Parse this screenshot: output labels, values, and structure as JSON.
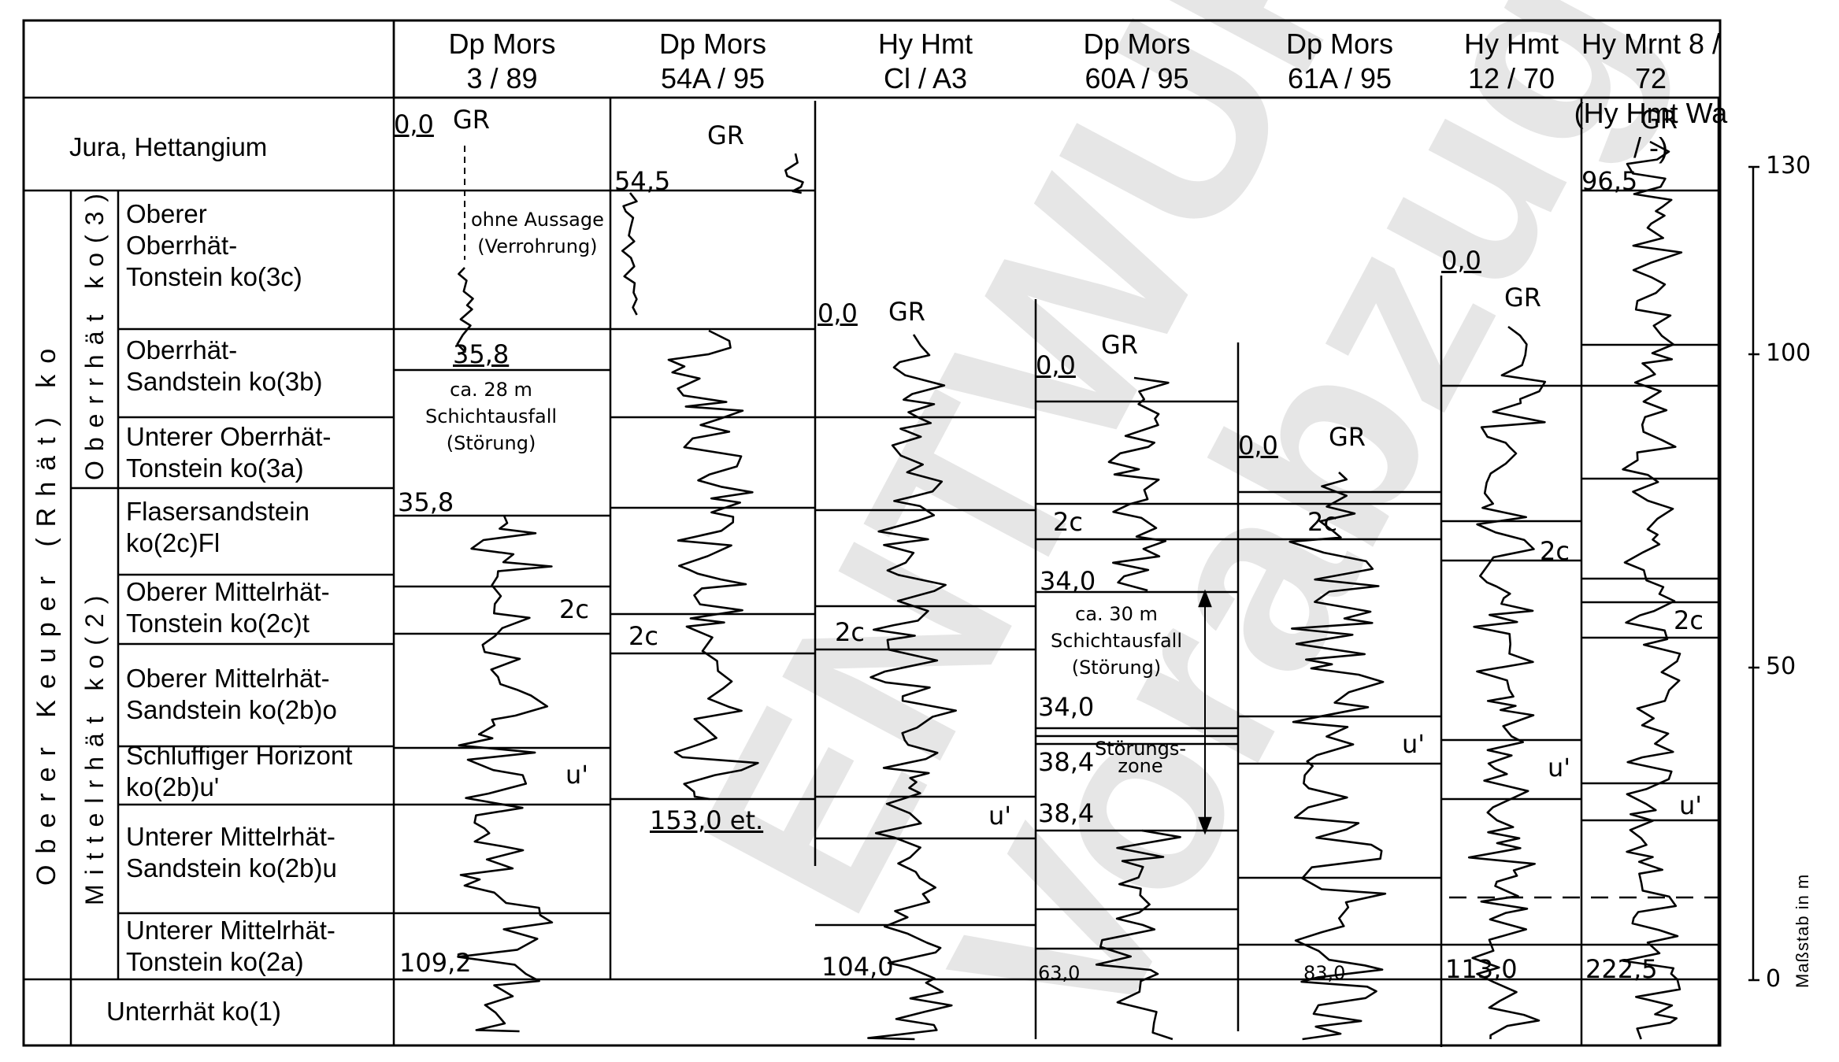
{
  "wells": [
    {
      "id": "w1",
      "line1": "Dp Mors",
      "line2": "3 / 89"
    },
    {
      "id": "w2",
      "line1": "Dp Mors",
      "line2": "54A / 95"
    },
    {
      "id": "w3",
      "line1": "Hy Hmt",
      "line2": "Cl / A3"
    },
    {
      "id": "w4",
      "line1": "Dp Mors",
      "line2": "60A / 95"
    },
    {
      "id": "w5",
      "line1": "Dp Mors",
      "line2": "61A / 95"
    },
    {
      "id": "w6",
      "line1": "Hy Hmt",
      "line2": "12 / 70"
    },
    {
      "id": "w7",
      "line1": "Hy Mrnt 8 / 72",
      "line2": "(Hy Hmt Wa / -)"
    }
  ],
  "stratigraphy": {
    "jura": "Jura,  Hettangium",
    "outer_group": "Oberer  Keuper  (Rhät)  ko",
    "oberrhaet": "Oberrhät  ko(3)",
    "mittelrhaet": "Mittelrhät  ko(2)",
    "units": [
      {
        "l1": "Oberer",
        "l2": "Oberrhät-",
        "l3": "Tonstein  ko(3c)"
      },
      {
        "l1": "Oberrhät-",
        "l2": "Sandstein  ko(3b)",
        "l3": ""
      },
      {
        "l1": "Unterer Oberrhät-",
        "l2": "Tonstein  ko(3a)",
        "l3": ""
      },
      {
        "l1": "Flasersandstein",
        "l2": "ko(2c)Fl",
        "l3": ""
      },
      {
        "l1": "Oberer Mittelrhät-",
        "l2": "Tonstein  ko(2c)t",
        "l3": ""
      },
      {
        "l1": "Oberer Mittelrhät-",
        "l2": "Sandstein  ko(2b)o",
        "l3": ""
      },
      {
        "l1": "Schluffiger Horizont",
        "l2": "ko(2b)u'",
        "l3": ""
      },
      {
        "l1": "Unterer Mittelrhät-",
        "l2": "Sandstein  ko(2b)u",
        "l3": ""
      },
      {
        "l1": "Unterer Mittelrhät-",
        "l2": "Tonstein  ko(2a)",
        "l3": ""
      }
    ],
    "unterrhaet": "Unterrhät  ko(1)"
  },
  "annotations": {
    "gr": "GR",
    "w1_top": "0,0",
    "w1_ohne1": "ohne Aussage",
    "w1_ohne2": "(Verrohrung)",
    "w1_358a": "35,8",
    "w1_aus1": "ca. 28 m",
    "w1_aus2": "Schichtausfall",
    "w1_aus3": "(Störung)",
    "w1_358b": "35,8",
    "w1_2c": "2c",
    "w1_u": "u'",
    "w1_bottom": "109,2",
    "w2_top": "54,5",
    "w2_2c": "2c",
    "w2_bottom": "153,0 et.",
    "w3_top": "0,0",
    "w3_2c": "2c",
    "w3_u": "u'",
    "w3_bottom": "104,0",
    "w4_top": "0,0",
    "w4_2c": "2c",
    "w4_340a": "34,0",
    "w4_aus1": "ca. 30 m",
    "w4_aus2": "Schichtausfall",
    "w4_aus3": "(Störung)",
    "w4_340b": "34,0",
    "w4_384a": "38,4",
    "w4_stoer1": "Störungs-",
    "w4_stoer2": "zone",
    "w4_384b": "38,4",
    "w4_bottom": "63,0",
    "w5_top": "0,0",
    "w5_2c": "2c",
    "w5_u": "u'",
    "w5_bottom": "83,0",
    "w6_top": "0,0",
    "w6_2c": "2c",
    "w6_u": "u'",
    "w6_bottom": "113,0",
    "w7_top": "96,5",
    "w7_2c": "2c",
    "w7_u": "u'",
    "w7_bottom": "222,5"
  },
  "scale": {
    "ticks": [
      {
        "label": "130"
      },
      {
        "label": "100"
      },
      {
        "label": "50"
      },
      {
        "label": "0"
      }
    ],
    "label": "Maßstab in m"
  }
}
